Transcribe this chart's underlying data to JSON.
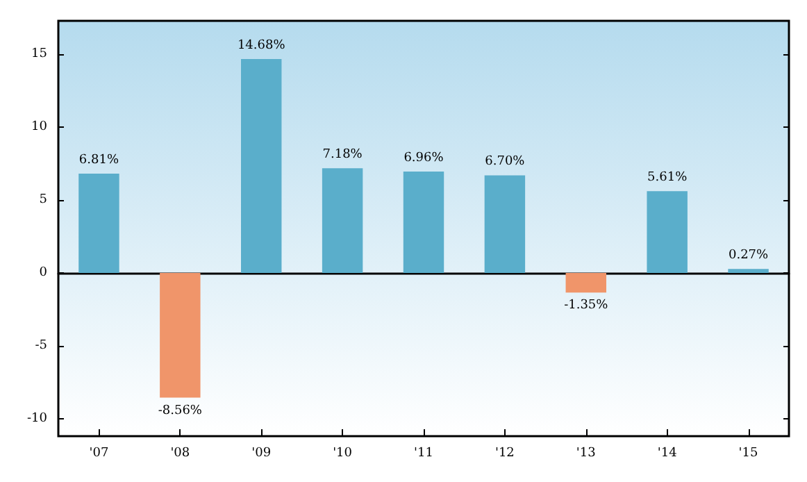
{
  "chart_data": {
    "type": "bar",
    "categories": [
      "'07",
      "'08",
      "'09",
      "'10",
      "'11",
      "'12",
      "'13",
      "'14",
      "'15"
    ],
    "values": [
      6.81,
      -8.56,
      14.68,
      7.18,
      6.96,
      6.7,
      -1.35,
      5.61,
      0.27
    ],
    "colors": [
      "#5aaecb",
      "#f0956a",
      "#5aaecb",
      "#5aaecb",
      "#5aaecb",
      "#5aaecb",
      "#f0956a",
      "#5aaecb",
      "#5aaecb"
    ],
    "value_labels": [
      "6.81%",
      "-8.56%",
      "14.68%",
      "7.18%",
      "6.96%",
      "6.70%",
      "-1.35%",
      "5.61%",
      "0.27%"
    ],
    "ylim": [
      -11.2,
      17.3
    ],
    "yticks": [
      -10,
      -5,
      0,
      5,
      10,
      15
    ]
  }
}
